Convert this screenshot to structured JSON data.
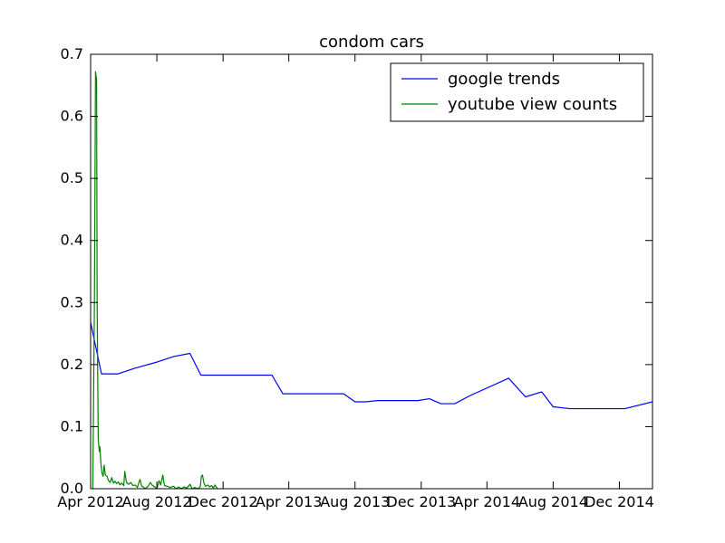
{
  "chart_data": {
    "type": "line",
    "title": "condom cars",
    "xlabel": "",
    "ylabel": "",
    "x_axis_type": "date",
    "xlim": [
      "2012-04-01",
      "2015-01-31"
    ],
    "ylim": [
      0.0,
      0.7
    ],
    "x_ticks": [
      {
        "date": "2012-04-01",
        "label": "Apr 2012"
      },
      {
        "date": "2012-08-01",
        "label": "Aug 2012"
      },
      {
        "date": "2012-12-01",
        "label": "Dec 2012"
      },
      {
        "date": "2013-04-01",
        "label": "Apr 2013"
      },
      {
        "date": "2013-08-01",
        "label": "Aug 2013"
      },
      {
        "date": "2013-12-01",
        "label": "Dec 2013"
      },
      {
        "date": "2014-04-01",
        "label": "Apr 2014"
      },
      {
        "date": "2014-08-01",
        "label": "Aug 2014"
      },
      {
        "date": "2014-12-01",
        "label": "Dec 2014"
      }
    ],
    "y_ticks": [
      {
        "value": 0.0,
        "label": "0.0"
      },
      {
        "value": 0.1,
        "label": "0.1"
      },
      {
        "value": 0.2,
        "label": "0.2"
      },
      {
        "value": 0.3,
        "label": "0.3"
      },
      {
        "value": 0.4,
        "label": "0.4"
      },
      {
        "value": 0.5,
        "label": "0.5"
      },
      {
        "value": 0.6,
        "label": "0.6"
      },
      {
        "value": 0.7,
        "label": "0.7"
      }
    ],
    "grid": false,
    "legend_position": "top-right",
    "series": [
      {
        "name": "google trends",
        "color": "#0000ff",
        "points": [
          [
            "2012-04-01",
            0.268
          ],
          [
            "2012-04-21",
            0.185
          ],
          [
            "2012-05-21",
            0.185
          ],
          [
            "2012-06-21",
            0.194
          ],
          [
            "2012-08-01",
            0.204
          ],
          [
            "2012-09-01",
            0.213
          ],
          [
            "2012-10-01",
            0.218
          ],
          [
            "2012-10-21",
            0.183
          ],
          [
            "2013-03-01",
            0.183
          ],
          [
            "2013-03-21",
            0.153
          ],
          [
            "2013-07-11",
            0.153
          ],
          [
            "2013-08-01",
            0.14
          ],
          [
            "2013-08-21",
            0.14
          ],
          [
            "2013-09-11",
            0.142
          ],
          [
            "2013-11-25",
            0.142
          ],
          [
            "2013-12-16",
            0.145
          ],
          [
            "2014-01-06",
            0.137
          ],
          [
            "2014-02-01",
            0.137
          ],
          [
            "2014-03-01",
            0.15
          ],
          [
            "2014-05-11",
            0.178
          ],
          [
            "2014-06-11",
            0.148
          ],
          [
            "2014-07-11",
            0.156
          ],
          [
            "2014-08-01",
            0.132
          ],
          [
            "2014-09-01",
            0.129
          ],
          [
            "2014-12-11",
            0.129
          ],
          [
            "2015-01-31",
            0.14
          ]
        ]
      },
      {
        "name": "youtube view counts",
        "color": "#008000",
        "points": [
          [
            "2012-04-05",
            0.0
          ],
          [
            "2012-04-08",
            0.3
          ],
          [
            "2012-04-10",
            0.672
          ],
          [
            "2012-04-11",
            0.665
          ],
          [
            "2012-04-12",
            0.66
          ],
          [
            "2012-04-13",
            0.3
          ],
          [
            "2012-04-15",
            0.08
          ],
          [
            "2012-04-17",
            0.06
          ],
          [
            "2012-04-18",
            0.068
          ],
          [
            "2012-04-20",
            0.04
          ],
          [
            "2012-04-22",
            0.025
          ],
          [
            "2012-04-24",
            0.02
          ],
          [
            "2012-04-26",
            0.038
          ],
          [
            "2012-04-28",
            0.022
          ],
          [
            "2012-05-01",
            0.02
          ],
          [
            "2012-05-04",
            0.013
          ],
          [
            "2012-05-07",
            0.01
          ],
          [
            "2012-05-10",
            0.018
          ],
          [
            "2012-05-13",
            0.009
          ],
          [
            "2012-05-16",
            0.012
          ],
          [
            "2012-05-19",
            0.008
          ],
          [
            "2012-05-22",
            0.011
          ],
          [
            "2012-05-25",
            0.006
          ],
          [
            "2012-05-28",
            0.009
          ],
          [
            "2012-06-01",
            0.005
          ],
          [
            "2012-06-03",
            0.028
          ],
          [
            "2012-06-06",
            0.01
          ],
          [
            "2012-06-10",
            0.007
          ],
          [
            "2012-06-14",
            0.01
          ],
          [
            "2012-06-18",
            0.005
          ],
          [
            "2012-06-22",
            0.006
          ],
          [
            "2012-06-26",
            0.002
          ],
          [
            "2012-07-01",
            0.015
          ],
          [
            "2012-07-04",
            0.004
          ],
          [
            "2012-07-07",
            0.003
          ],
          [
            "2012-07-10",
            0.0
          ],
          [
            "2012-07-15",
            0.003
          ],
          [
            "2012-07-20",
            0.01
          ],
          [
            "2012-07-24",
            0.005
          ],
          [
            "2012-07-28",
            0.003
          ],
          [
            "2012-08-01",
            0.0
          ],
          [
            "2012-08-05",
            0.013
          ],
          [
            "2012-08-08",
            0.006
          ],
          [
            "2012-08-12",
            0.022
          ],
          [
            "2012-08-15",
            0.005
          ],
          [
            "2012-08-20",
            0.004
          ],
          [
            "2012-08-25",
            0.002
          ],
          [
            "2012-09-01",
            0.004
          ],
          [
            "2012-09-05",
            0.0
          ],
          [
            "2012-09-10",
            0.003
          ],
          [
            "2012-09-15",
            0.0
          ],
          [
            "2012-09-20",
            0.003
          ],
          [
            "2012-09-25",
            0.001
          ],
          [
            "2012-10-01",
            0.007
          ],
          [
            "2012-10-05",
            0.0
          ],
          [
            "2012-10-10",
            0.002
          ],
          [
            "2012-10-15",
            0.0
          ],
          [
            "2012-10-20",
            0.003
          ],
          [
            "2012-10-22",
            0.02
          ],
          [
            "2012-10-24",
            0.022
          ],
          [
            "2012-10-27",
            0.008
          ],
          [
            "2012-10-30",
            0.004
          ],
          [
            "2012-11-03",
            0.006
          ],
          [
            "2012-11-06",
            0.003
          ],
          [
            "2012-11-10",
            0.005
          ],
          [
            "2012-11-13",
            0.001
          ],
          [
            "2012-11-16",
            0.006
          ],
          [
            "2012-11-19",
            0.002
          ],
          [
            "2012-11-21",
            0.0
          ]
        ]
      }
    ]
  }
}
